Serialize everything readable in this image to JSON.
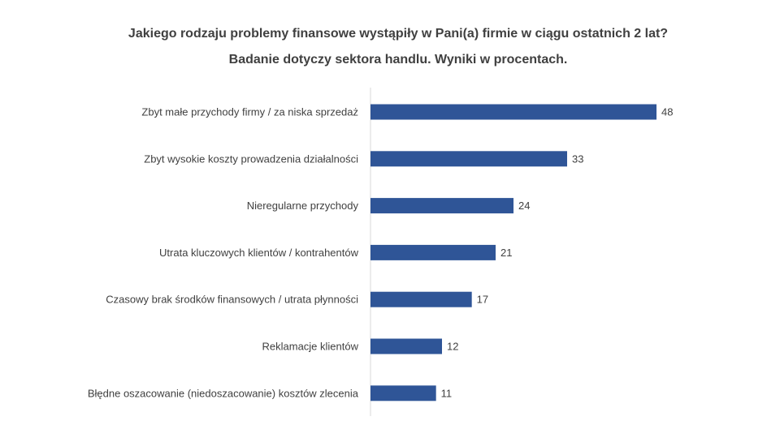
{
  "chart_data": {
    "type": "bar",
    "orientation": "horizontal",
    "title": "Jakiego rodzaju problemy finansowe wystąpiły w Pani(a) firmie w ciągu ostatnich 2 lat?",
    "subtitle": "Badanie dotyczy sektora handlu. Wyniki w procentach.",
    "categories": [
      "Zbyt małe przychody firmy / za niska sprzedaż",
      "Zbyt wysokie koszty prowadzenia działalności",
      "Nieregularne przychody",
      "Utrata kluczowych klientów / kontrahentów",
      "Czasowy brak środków finansowych / utrata płynności",
      "Reklamacje klientów",
      "Błędne oszacowanie (niedoszacowanie) kosztów zlecenia"
    ],
    "values": [
      48,
      33,
      24,
      21,
      17,
      12,
      11
    ],
    "xlim": [
      0,
      48
    ],
    "grid": false,
    "legend": "none",
    "data_labels": true,
    "bar_color": "#2f5597",
    "axis_color": "#d9d9d9",
    "text_color": "#404040"
  }
}
